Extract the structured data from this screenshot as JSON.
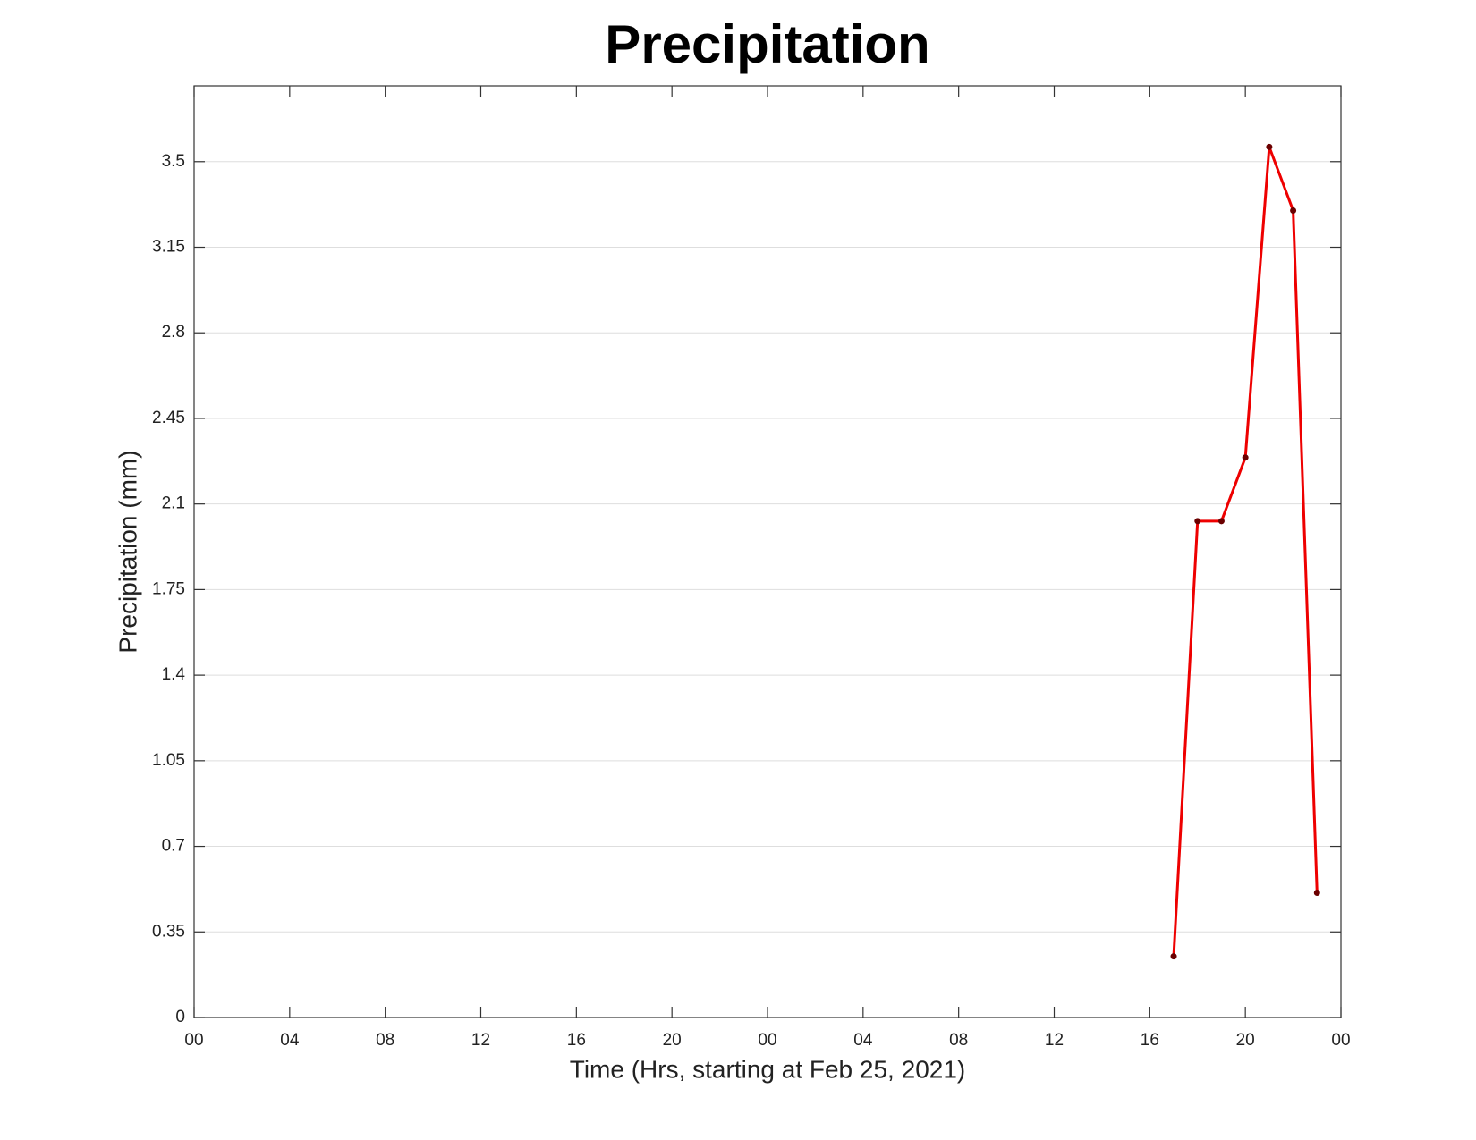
{
  "chart_data": {
    "type": "line",
    "title": "Precipitation",
    "x_label": "Time (Hrs, starting at Feb 25, 2021)",
    "y_label": "Precipitation (mm)",
    "x": [
      41,
      42,
      43,
      44,
      45,
      46,
      47
    ],
    "series": [
      {
        "color": "#ee0000",
        "marker_color": "#6b0000",
        "values": [
          0.25,
          2.03,
          2.03,
          2.29,
          3.56,
          3.3,
          0.51
        ]
      }
    ],
    "xlim": [
      0,
      48
    ],
    "xticks": [
      {
        "value": 0,
        "label": "00"
      },
      {
        "value": 4,
        "label": "04"
      },
      {
        "value": 8,
        "label": "08"
      },
      {
        "value": 12,
        "label": "12"
      },
      {
        "value": 16,
        "label": "16"
      },
      {
        "value": 20,
        "label": "20"
      },
      {
        "value": 24,
        "label": "00"
      },
      {
        "value": 28,
        "label": "04"
      },
      {
        "value": 32,
        "label": "08"
      },
      {
        "value": 36,
        "label": "12"
      },
      {
        "value": 40,
        "label": "16"
      },
      {
        "value": 44,
        "label": "20"
      },
      {
        "value": 48,
        "label": "00"
      }
    ],
    "ylim": [
      0,
      3.81
    ],
    "yticks": [
      0,
      0.35,
      0.7,
      1.05,
      1.4,
      1.75,
      2.1,
      2.45,
      2.8,
      3.15,
      3.5
    ],
    "grid": true
  }
}
